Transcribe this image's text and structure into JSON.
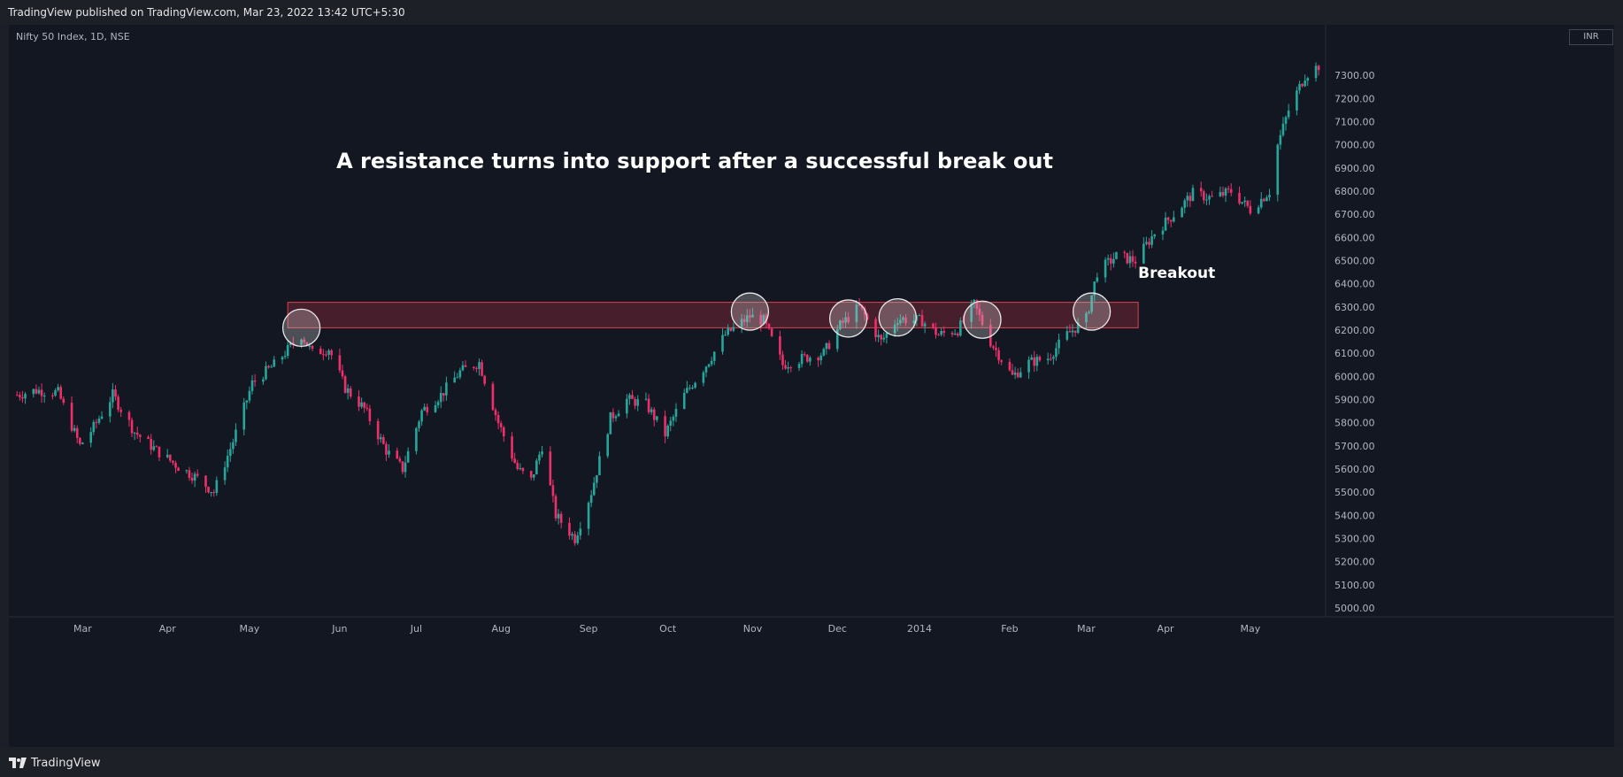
{
  "header": {
    "publish_text": "TradingView published on TradingView.com, Mar 23, 2022 13:42 UTC+5:30"
  },
  "footer": {
    "brand_text": "TradingView"
  },
  "colors": {
    "background": "#131722",
    "up": "#26a69a",
    "down": "#ef2f6a",
    "zone_fill": "#5a2230",
    "zone_border": "#e0404f",
    "axis_text": "#b2b5be"
  },
  "chart_data": {
    "type": "candlestick",
    "symbol_label": "Nifty 50 Index, 1D, NSE",
    "currency": "INR",
    "title": "A resistance turns into support after a successful break out",
    "annotation": {
      "text": "Breakout",
      "date": "2014-03-22",
      "price": 6425
    },
    "ylim": [
      4950,
      7450
    ],
    "y_ticks": [
      5000,
      5100,
      5200,
      5300,
      5400,
      5500,
      5600,
      5700,
      5800,
      5900,
      6000,
      6100,
      6200,
      6300,
      6400,
      6500,
      6600,
      6700,
      6800,
      6900,
      7000,
      7100,
      7200,
      7300
    ],
    "x_ticks": [
      {
        "label": "Mar",
        "date": "2013-03-01"
      },
      {
        "label": "Apr",
        "date": "2013-04-01"
      },
      {
        "label": "May",
        "date": "2013-05-01"
      },
      {
        "label": "Jun",
        "date": "2013-06-03"
      },
      {
        "label": "Jul",
        "date": "2013-07-01"
      },
      {
        "label": "Aug",
        "date": "2013-08-01"
      },
      {
        "label": "Sep",
        "date": "2013-09-02"
      },
      {
        "label": "Oct",
        "date": "2013-10-01"
      },
      {
        "label": "Nov",
        "date": "2013-11-01"
      },
      {
        "label": "Dec",
        "date": "2013-12-02"
      },
      {
        "label": "2014",
        "date": "2014-01-01"
      },
      {
        "label": "Feb",
        "date": "2014-02-03"
      },
      {
        "label": "Mar",
        "date": "2014-03-03"
      },
      {
        "label": "Apr",
        "date": "2014-04-01"
      },
      {
        "label": "May",
        "date": "2014-05-02"
      }
    ],
    "price_path": [
      [
        "2013-02-05",
        5920
      ],
      [
        "2013-02-12",
        5940
      ],
      [
        "2013-02-20",
        5930
      ],
      [
        "2013-02-28",
        5700
      ],
      [
        "2013-03-05",
        5780
      ],
      [
        "2013-03-12",
        5920
      ],
      [
        "2013-03-20",
        5760
      ],
      [
        "2013-03-28",
        5680
      ],
      [
        "2013-04-05",
        5610
      ],
      [
        "2013-04-12",
        5560
      ],
      [
        "2013-04-18",
        5500
      ],
      [
        "2013-04-25",
        5720
      ],
      [
        "2013-05-02",
        5970
      ],
      [
        "2013-05-10",
        6050
      ],
      [
        "2013-05-20",
        6180
      ],
      [
        "2013-05-24",
        6100
      ],
      [
        "2013-05-30",
        6120
      ],
      [
        "2013-06-05",
        5950
      ],
      [
        "2013-06-12",
        5860
      ],
      [
        "2013-06-20",
        5680
      ],
      [
        "2013-06-26",
        5600
      ],
      [
        "2013-07-03",
        5850
      ],
      [
        "2013-07-10",
        5920
      ],
      [
        "2013-07-17",
        6020
      ],
      [
        "2013-07-24",
        6060
      ],
      [
        "2013-07-31",
        5800
      ],
      [
        "2013-08-07",
        5600
      ],
      [
        "2013-08-12",
        5550
      ],
      [
        "2013-08-16",
        5700
      ],
      [
        "2013-08-21",
        5400
      ],
      [
        "2013-08-28",
        5300
      ],
      [
        "2013-09-03",
        5500
      ],
      [
        "2013-09-10",
        5820
      ],
      [
        "2013-09-16",
        5900
      ],
      [
        "2013-09-23",
        5880
      ],
      [
        "2013-09-30",
        5750
      ],
      [
        "2013-10-07",
        5920
      ],
      [
        "2013-10-15",
        6050
      ],
      [
        "2013-10-22",
        6180
      ],
      [
        "2013-10-31",
        6260
      ],
      [
        "2013-11-05",
        6240
      ],
      [
        "2013-11-12",
        6050
      ],
      [
        "2013-11-20",
        6080
      ],
      [
        "2013-11-27",
        6100
      ],
      [
        "2013-12-03",
        6220
      ],
      [
        "2013-12-10",
        6300
      ],
      [
        "2013-12-18",
        6150
      ],
      [
        "2013-12-24",
        6250
      ],
      [
        "2014-01-02",
        6240
      ],
      [
        "2014-01-08",
        6180
      ],
      [
        "2014-01-15",
        6200
      ],
      [
        "2014-01-21",
        6310
      ],
      [
        "2014-01-27",
        6150
      ],
      [
        "2014-02-04",
        6000
      ],
      [
        "2014-02-10",
        6060
      ],
      [
        "2014-02-17",
        6080
      ],
      [
        "2014-02-24",
        6180
      ],
      [
        "2014-03-03",
        6250
      ],
      [
        "2014-03-07",
        6450
      ],
      [
        "2014-03-14",
        6520
      ],
      [
        "2014-03-21",
        6500
      ],
      [
        "2014-03-28",
        6620
      ],
      [
        "2014-04-04",
        6700
      ],
      [
        "2014-04-11",
        6790
      ],
      [
        "2014-04-18",
        6770
      ],
      [
        "2014-04-25",
        6800
      ],
      [
        "2014-05-02",
        6720
      ],
      [
        "2014-05-09",
        6800
      ],
      [
        "2014-05-12",
        7000
      ],
      [
        "2014-05-16",
        7150
      ],
      [
        "2014-05-22",
        7300
      ],
      [
        "2014-05-28",
        7350
      ]
    ],
    "resistance_zone": {
      "from": "2013-05-15",
      "to": "2014-03-22",
      "low": 6210,
      "high": 6320
    },
    "touch_circles": [
      {
        "date": "2013-05-20",
        "price": 6210
      },
      {
        "date": "2013-10-31",
        "price": 6280
      },
      {
        "date": "2013-12-06",
        "price": 6250
      },
      {
        "date": "2013-12-24",
        "price": 6255
      },
      {
        "date": "2014-01-24",
        "price": 6245
      },
      {
        "date": "2014-03-05",
        "price": 6280
      }
    ]
  }
}
